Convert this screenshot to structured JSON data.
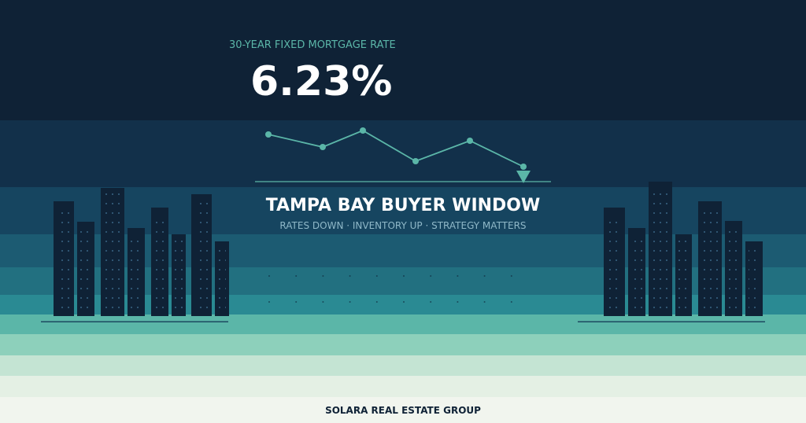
{
  "header": {
    "label": "30-YEAR FIXED MORTGAGE RATE",
    "rate": "6.23%"
  },
  "headline": {
    "title": "TAMPA BAY BUYER WINDOW",
    "subtitle": "RATES DOWN · INVENTORY UP · STRATEGY MATTERS"
  },
  "footer": {
    "brand": "SOLARA REAL ESTATE GROUP"
  }
}
